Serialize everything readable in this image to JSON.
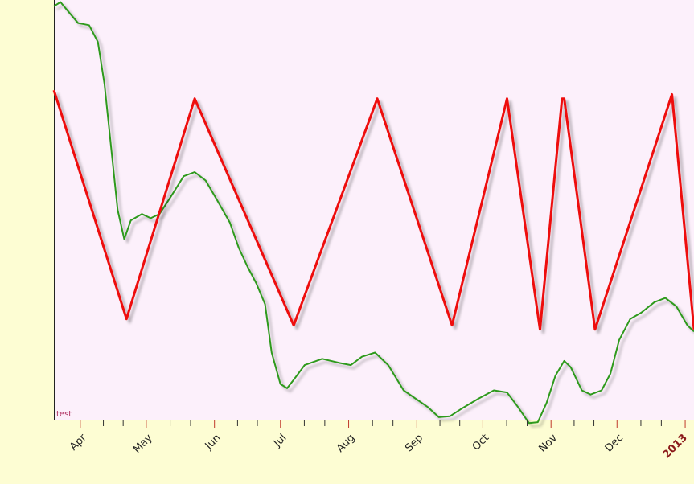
{
  "chart_data": {
    "type": "line",
    "annotation": "test",
    "x_ticks": [
      {
        "date": "2012-04-01",
        "label": "Apr",
        "bold": false
      },
      {
        "date": "2012-05-01",
        "label": "May",
        "bold": false
      },
      {
        "date": "2012-06-01",
        "label": "Jun",
        "bold": false
      },
      {
        "date": "2012-07-01",
        "label": "Jul",
        "bold": false
      },
      {
        "date": "2012-08-01",
        "label": "Aug",
        "bold": false
      },
      {
        "date": "2012-09-01",
        "label": "Sep",
        "bold": false
      },
      {
        "date": "2012-10-01",
        "label": "Oct",
        "bold": false
      },
      {
        "date": "2012-11-01",
        "label": "Nov",
        "bold": false
      },
      {
        "date": "2012-12-01",
        "label": "Dec",
        "bold": false
      },
      {
        "date": "2013-01-01",
        "label": "2013",
        "bold": true
      }
    ],
    "xlim": [
      "2012-03-20",
      "2013-01-05"
    ],
    "ylim": [
      0,
      100
    ],
    "grid": false,
    "series": [
      {
        "color": "#2e9a1e",
        "points": [
          [
            "2012-03-20",
            98.5
          ],
          [
            "2012-03-23",
            99.5
          ],
          [
            "2012-03-27",
            97.0
          ],
          [
            "2012-03-31",
            94.5
          ],
          [
            "2012-04-05",
            94.0
          ],
          [
            "2012-04-09",
            90.0
          ],
          [
            "2012-04-12",
            80.0
          ],
          [
            "2012-04-15",
            65.0
          ],
          [
            "2012-04-18",
            50.0
          ],
          [
            "2012-04-21",
            43.0
          ],
          [
            "2012-04-24",
            47.5
          ],
          [
            "2012-04-29",
            49.0
          ],
          [
            "2012-05-03",
            48.0
          ],
          [
            "2012-05-07",
            49.0
          ],
          [
            "2012-05-12",
            53.0
          ],
          [
            "2012-05-18",
            58.0
          ],
          [
            "2012-05-23",
            59.0
          ],
          [
            "2012-05-28",
            57.0
          ],
          [
            "2012-06-02",
            52.5
          ],
          [
            "2012-06-08",
            47.0
          ],
          [
            "2012-06-12",
            41.0
          ],
          [
            "2012-06-16",
            36.5
          ],
          [
            "2012-06-20",
            32.5
          ],
          [
            "2012-06-24",
            27.5
          ],
          [
            "2012-06-27",
            16.0
          ],
          [
            "2012-07-01",
            8.5
          ],
          [
            "2012-07-04",
            7.5
          ],
          [
            "2012-07-07",
            9.5
          ],
          [
            "2012-07-12",
            13.0
          ],
          [
            "2012-07-20",
            14.5
          ],
          [
            "2012-07-28",
            13.5
          ],
          [
            "2012-08-02",
            13.0
          ],
          [
            "2012-08-07",
            15.0
          ],
          [
            "2012-08-13",
            16.0
          ],
          [
            "2012-08-19",
            13.0
          ],
          [
            "2012-08-26",
            7.0
          ],
          [
            "2012-09-06",
            3.0
          ],
          [
            "2012-09-11",
            0.6
          ],
          [
            "2012-09-16",
            0.8
          ],
          [
            "2012-09-21",
            2.5
          ],
          [
            "2012-09-29",
            5.0
          ],
          [
            "2012-10-06",
            7.0
          ],
          [
            "2012-10-12",
            6.5
          ],
          [
            "2012-10-17",
            3.0
          ],
          [
            "2012-10-22",
            -0.8
          ],
          [
            "2012-10-26",
            -0.6
          ],
          [
            "2012-10-30",
            4.0
          ],
          [
            "2012-11-03",
            10.5
          ],
          [
            "2012-11-07",
            14.0
          ],
          [
            "2012-11-10",
            12.5
          ],
          [
            "2012-11-15",
            7.0
          ],
          [
            "2012-11-19",
            6.0
          ],
          [
            "2012-11-24",
            7.0
          ],
          [
            "2012-11-28",
            11.0
          ],
          [
            "2012-12-02",
            19.0
          ],
          [
            "2012-12-07",
            24.0
          ],
          [
            "2012-12-12",
            25.5
          ],
          [
            "2012-12-18",
            28.0
          ],
          [
            "2012-12-23",
            29.0
          ],
          [
            "2012-12-28",
            27.0
          ],
          [
            "2013-01-02",
            22.5
          ],
          [
            "2013-01-05",
            21.0
          ]
        ]
      },
      {
        "color": "#ee1111",
        "points": [
          [
            "2012-03-20",
            78.5
          ],
          [
            "2012-04-22",
            24.0
          ],
          [
            "2012-05-23",
            76.5
          ],
          [
            "2012-07-07",
            22.5
          ],
          [
            "2012-08-14",
            76.5
          ],
          [
            "2012-09-17",
            22.5
          ],
          [
            "2012-10-12",
            76.5
          ],
          [
            "2012-10-27",
            21.5
          ],
          [
            "2012-11-06",
            76.5
          ],
          [
            "2012-11-07",
            76.5
          ],
          [
            "2012-11-21",
            21.5
          ],
          [
            "2012-12-26",
            77.5
          ],
          [
            "2013-01-05",
            21.5
          ]
        ]
      }
    ]
  }
}
